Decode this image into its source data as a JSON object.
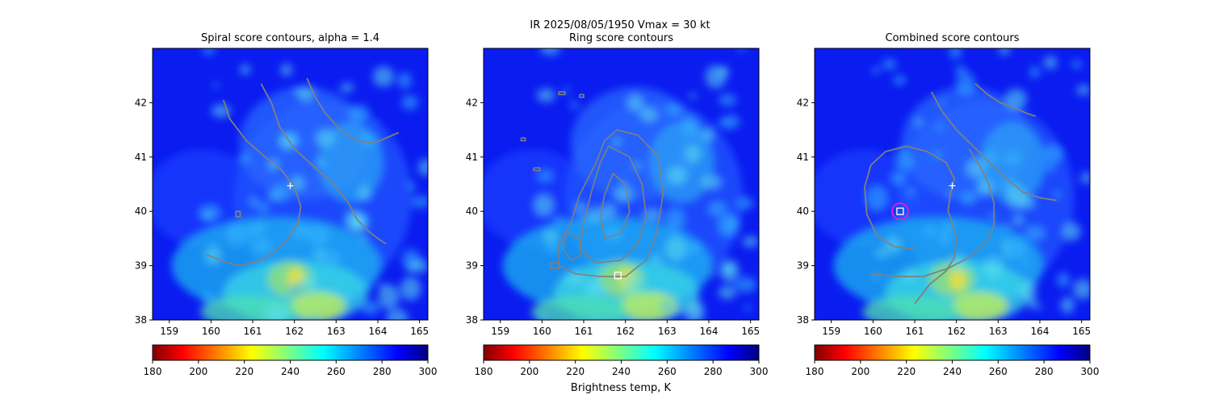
{
  "figure": {
    "suptitle_line1": "IR  2025/08/05/1950    Vmax = 30 kt",
    "colorbar_label": "Brightness temp, K"
  },
  "colors": {
    "contour": "#808080",
    "center_marker": "#ffffff",
    "combined_circle": "#e41ec8",
    "colormap": "jet_reversed"
  },
  "chart_data": [
    {
      "type": "heatmap",
      "title": "Spiral score contours, alpha =  1.4",
      "xlim": [
        158.6,
        165.2
      ],
      "ylim": [
        38.0,
        43.0
      ],
      "xticks": [
        159,
        160,
        161,
        162,
        163,
        164,
        165
      ],
      "yticks": [
        38,
        39,
        40,
        41,
        42
      ],
      "colorbar": {
        "min": 180,
        "max": 300,
        "ticks": [
          180,
          200,
          220,
          240,
          260,
          280,
          300
        ]
      },
      "markers": [
        {
          "shape": "plus",
          "x": 161.9,
          "y": 40.47
        }
      ],
      "contours": [
        [
          [
            160.3,
            42.05
          ],
          [
            160.45,
            41.7
          ],
          [
            160.85,
            41.3
          ],
          [
            161.3,
            41.0
          ],
          [
            161.7,
            40.75
          ],
          [
            162.0,
            40.45
          ],
          [
            162.15,
            40.1
          ],
          [
            162.1,
            39.8
          ],
          [
            161.9,
            39.55
          ],
          [
            161.6,
            39.3
          ],
          [
            161.2,
            39.1
          ],
          [
            160.7,
            39.0
          ],
          [
            160.4,
            39.05
          ],
          [
            159.9,
            39.2
          ]
        ],
        [
          [
            161.2,
            42.35
          ],
          [
            161.45,
            42.0
          ],
          [
            161.65,
            41.55
          ],
          [
            162.0,
            41.15
          ],
          [
            162.5,
            40.8
          ],
          [
            162.95,
            40.5
          ],
          [
            163.3,
            40.15
          ],
          [
            163.5,
            39.85
          ],
          [
            163.75,
            39.65
          ],
          [
            164.0,
            39.5
          ],
          [
            164.2,
            39.4
          ]
        ],
        [
          [
            162.3,
            42.45
          ],
          [
            162.5,
            42.1
          ],
          [
            162.75,
            41.8
          ],
          [
            163.1,
            41.5
          ],
          [
            163.5,
            41.3
          ],
          [
            163.9,
            41.25
          ],
          [
            164.2,
            41.35
          ],
          [
            164.5,
            41.45
          ]
        ],
        [
          [
            160.6,
            40.0
          ],
          [
            160.6,
            39.9
          ],
          [
            160.7,
            39.9
          ],
          [
            160.7,
            40.0
          ],
          [
            160.6,
            40.0
          ]
        ]
      ]
    },
    {
      "type": "heatmap",
      "title": "Ring score contours",
      "xlim": [
        158.6,
        165.2
      ],
      "ylim": [
        38.0,
        43.0
      ],
      "xticks": [
        159,
        160,
        161,
        162,
        163,
        164,
        165
      ],
      "yticks": [
        38,
        39,
        40,
        41,
        42
      ],
      "colorbar": {
        "min": 180,
        "max": 300,
        "ticks": [
          180,
          200,
          220,
          240,
          260,
          280,
          300
        ]
      },
      "markers": [
        {
          "shape": "square",
          "x": 161.82,
          "y": 38.82
        }
      ],
      "contours": [
        [
          [
            161.8,
            41.5
          ],
          [
            162.3,
            41.4
          ],
          [
            162.8,
            41.0
          ],
          [
            162.9,
            40.3
          ],
          [
            162.75,
            39.6
          ],
          [
            162.5,
            39.1
          ],
          [
            162.0,
            38.8
          ],
          [
            161.4,
            38.8
          ],
          [
            160.8,
            38.85
          ],
          [
            160.4,
            39.0
          ],
          [
            160.4,
            39.4
          ],
          [
            160.7,
            39.8
          ],
          [
            160.9,
            40.3
          ],
          [
            161.3,
            40.9
          ],
          [
            161.5,
            41.3
          ],
          [
            161.8,
            41.5
          ]
        ],
        [
          [
            161.6,
            41.2
          ],
          [
            162.1,
            41.0
          ],
          [
            162.4,
            40.5
          ],
          [
            162.5,
            39.9
          ],
          [
            162.3,
            39.4
          ],
          [
            161.9,
            39.1
          ],
          [
            161.3,
            39.05
          ],
          [
            160.9,
            39.3
          ],
          [
            161.0,
            39.8
          ],
          [
            161.2,
            40.4
          ],
          [
            161.4,
            40.9
          ],
          [
            161.6,
            41.2
          ]
        ],
        [
          [
            161.7,
            40.7
          ],
          [
            162.0,
            40.5
          ],
          [
            162.1,
            40.0
          ],
          [
            161.9,
            39.6
          ],
          [
            161.5,
            39.5
          ],
          [
            161.4,
            39.9
          ],
          [
            161.5,
            40.3
          ],
          [
            161.7,
            40.7
          ]
        ],
        [
          [
            160.6,
            39.6
          ],
          [
            160.9,
            39.5
          ],
          [
            160.95,
            39.2
          ],
          [
            160.7,
            39.1
          ],
          [
            160.5,
            39.3
          ],
          [
            160.6,
            39.6
          ]
        ],
        [
          [
            159.8,
            40.8
          ],
          [
            159.95,
            40.8
          ],
          [
            159.95,
            40.75
          ],
          [
            159.8,
            40.75
          ],
          [
            159.8,
            40.8
          ]
        ],
        [
          [
            159.5,
            41.35
          ],
          [
            159.6,
            41.35
          ],
          [
            159.6,
            41.3
          ],
          [
            159.5,
            41.3
          ],
          [
            159.5,
            41.35
          ]
        ],
        [
          [
            160.4,
            42.2
          ],
          [
            160.55,
            42.2
          ],
          [
            160.55,
            42.15
          ],
          [
            160.4,
            42.15
          ],
          [
            160.4,
            42.2
          ]
        ],
        [
          [
            160.9,
            42.15
          ],
          [
            161.0,
            42.15
          ],
          [
            161.0,
            42.1
          ],
          [
            160.9,
            42.1
          ],
          [
            160.9,
            42.15
          ]
        ],
        [
          [
            160.2,
            39.05
          ],
          [
            160.4,
            39.05
          ],
          [
            160.4,
            38.95
          ],
          [
            160.2,
            38.95
          ],
          [
            160.2,
            39.05
          ]
        ]
      ]
    },
    {
      "type": "heatmap",
      "title": "Combined score contours",
      "xlim": [
        158.6,
        165.2
      ],
      "ylim": [
        38.0,
        43.0
      ],
      "xticks": [
        159,
        160,
        161,
        162,
        163,
        164,
        165
      ],
      "yticks": [
        38,
        39,
        40,
        41,
        42
      ],
      "colorbar": {
        "min": 180,
        "max": 300,
        "ticks": [
          180,
          200,
          220,
          240,
          260,
          280,
          300
        ]
      },
      "markers": [
        {
          "shape": "plus",
          "x": 161.9,
          "y": 40.47
        },
        {
          "shape": "circled-square",
          "x": 160.65,
          "y": 40.0
        }
      ],
      "contours": [
        [
          [
            161.0,
            38.3
          ],
          [
            161.35,
            38.65
          ],
          [
            161.75,
            38.9
          ],
          [
            161.95,
            39.15
          ],
          [
            162.0,
            39.5
          ],
          [
            161.9,
            39.8
          ],
          [
            161.8,
            40.0
          ],
          [
            161.85,
            40.3
          ],
          [
            161.95,
            40.6
          ],
          [
            161.75,
            40.9
          ],
          [
            161.3,
            41.1
          ],
          [
            160.8,
            41.2
          ],
          [
            160.3,
            41.1
          ],
          [
            159.95,
            40.85
          ],
          [
            159.8,
            40.45
          ],
          [
            159.85,
            39.95
          ],
          [
            160.1,
            39.55
          ],
          [
            160.5,
            39.35
          ],
          [
            161.0,
            39.3
          ]
        ],
        [
          [
            159.9,
            38.85
          ],
          [
            160.6,
            38.8
          ],
          [
            161.2,
            38.8
          ],
          [
            161.8,
            38.95
          ],
          [
            162.3,
            39.15
          ],
          [
            162.7,
            39.4
          ],
          [
            162.9,
            39.75
          ],
          [
            162.9,
            40.15
          ],
          [
            162.75,
            40.55
          ],
          [
            162.55,
            40.85
          ],
          [
            162.3,
            41.15
          ]
        ],
        [
          [
            161.4,
            42.2
          ],
          [
            161.65,
            41.85
          ],
          [
            162.0,
            41.5
          ],
          [
            162.4,
            41.2
          ],
          [
            162.8,
            40.9
          ],
          [
            163.2,
            40.6
          ],
          [
            163.6,
            40.35
          ],
          [
            164.0,
            40.25
          ],
          [
            164.4,
            40.2
          ]
        ],
        [
          [
            162.45,
            42.35
          ],
          [
            162.75,
            42.15
          ],
          [
            163.05,
            42.0
          ],
          [
            163.4,
            41.9
          ],
          [
            163.7,
            41.8
          ],
          [
            163.9,
            41.75
          ]
        ]
      ]
    }
  ]
}
